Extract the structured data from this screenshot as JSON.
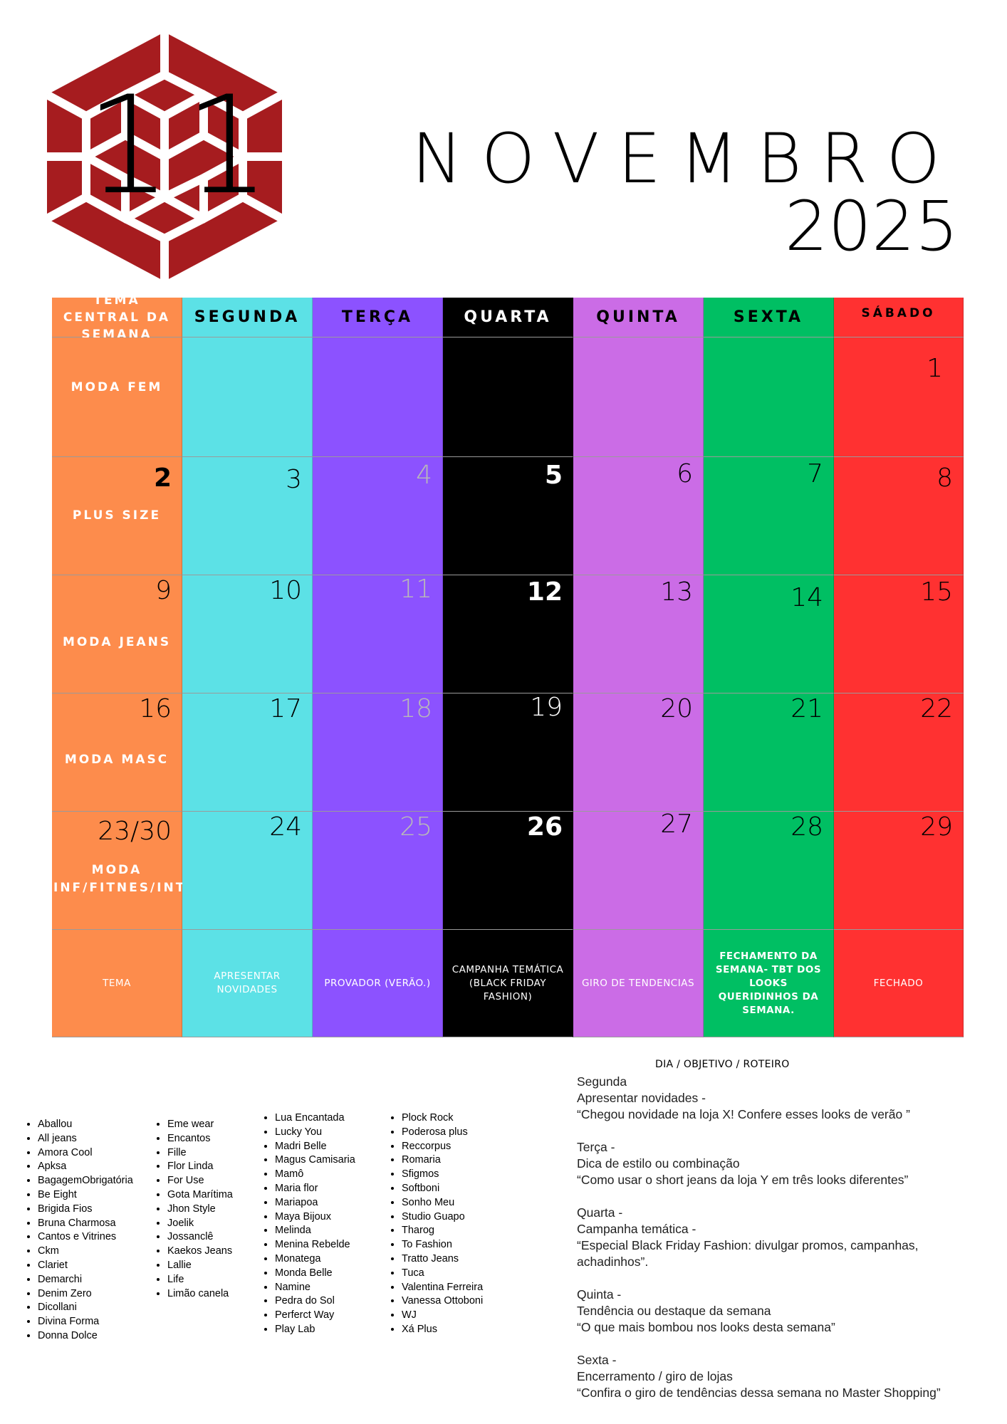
{
  "header": {
    "month_number": "11",
    "month": "NOVEMBRO",
    "year": "2025",
    "logo_color": "#a61c1f"
  },
  "calendar": {
    "theme_header": "TEMA CENTRAL DA SEMANA",
    "days": [
      "SEGUNDA",
      "TERÇA",
      "QUARTA",
      "QUINTA",
      "SEXTA",
      "SÁBADO"
    ],
    "column_colors": [
      "#fd8c4c",
      "#5ce1e6",
      "#8c52ff",
      "#000000",
      "#cb6ce6",
      "#00bf63",
      "#ff3131"
    ],
    "weeks": [
      {
        "theme_num": "",
        "theme": "MODA FEM",
        "days": [
          "",
          "",
          "",
          "",
          "",
          "1"
        ]
      },
      {
        "theme_num": "2",
        "theme": "PLUS SIZE",
        "days": [
          "3",
          "4",
          "5",
          "6",
          "7",
          "8"
        ]
      },
      {
        "theme_num": "9",
        "theme": "MODA JEANS",
        "days": [
          "10",
          "11",
          "12",
          "13",
          "14",
          "15"
        ]
      },
      {
        "theme_num": "16",
        "theme": "MODA MASC",
        "days": [
          "17",
          "18",
          "19",
          "20",
          "21",
          "22"
        ]
      },
      {
        "theme_num": "23/30",
        "theme": "MODA INF/FITNES/INTIMA",
        "days": [
          "24",
          "25",
          "26",
          "27",
          "28",
          "29"
        ]
      }
    ],
    "footer": [
      "TEMA",
      "APRESENTAR NOVIDADES",
      "PROVADOR (VERÃO.)",
      "CAMPANHA TEMÁTICA (BLACK FRIDAY FASHION)",
      "GIRO DE TENDENCIAS",
      "FECHAMENTO DA SEMANA- TBT DOS LOOKS QUERIDINHOS DA SEMANA.",
      "FECHADO"
    ]
  },
  "stores": {
    "col1": [
      "Aballou",
      "All jeans",
      "Amora Cool",
      "Apksa",
      "BagagemObrigatória",
      "Be Eight",
      "Brigida Fios",
      "Bruna Charmosa",
      "Cantos e Vitrines",
      "Ckm",
      "Clariet",
      "Demarchi",
      "Denim Zero",
      "Dicollani",
      "Divina Forma",
      "Donna Dolce"
    ],
    "col2": [
      "Eme wear",
      "Encantos",
      "Fille",
      "Flor Linda",
      "For Use",
      "Gota Marítima",
      "Jhon Style",
      "Joelik",
      "Jossanclê",
      "Kaekos Jeans",
      "Lallie",
      "Life",
      "Limão canela"
    ],
    "col3": [
      "Lua Encantada",
      "Lucky You",
      "Madri Belle",
      "Magus Camisaria",
      "Mamô",
      "Maria flor",
      "Mariapoa",
      "Maya Bijoux",
      "Melinda",
      "Menina Rebelde",
      "Monatega",
      "Monda Belle",
      "Namine",
      "Pedra do Sol",
      "Perferct Way",
      "Play Lab"
    ],
    "col4": [
      "Plock Rock",
      "Poderosa plus",
      "Reccorpus",
      "Romaria",
      "Sfigmos",
      "Softboni",
      "Sonho Meu",
      "Studio Guapo",
      "Tharog",
      "To Fashion",
      "Tratto Jeans",
      "Tuca",
      "Valentina Ferreira",
      "Vanessa Ottoboni",
      "WJ",
      "Xá Plus"
    ]
  },
  "roteiro": {
    "title": "DIA / OBJETIVO / ROTEIRO",
    "blocks": [
      {
        "day": "Segunda",
        "objective": "Apresentar novidades -",
        "text": "“Chegou novidade na loja X! Confere esses looks de verão ”"
      },
      {
        "day": "Terça -",
        "objective": "Dica de estilo ou combinação",
        "text": "“Como usar o short jeans da loja Y em três looks diferentes”"
      },
      {
        "day": "Quarta -",
        "objective": "Campanha temática -",
        "text": "“Especial Black Friday Fashion: divulgar promos, campanhas, achadinhos”."
      },
      {
        "day": "Quinta -",
        "objective": "Tendência ou destaque da semana",
        "text": "“O que mais bombou nos looks desta semana”"
      },
      {
        "day": "Sexta -",
        "objective": "Encerramento / giro de lojas",
        "text": "“Confira o giro de tendências dessa semana no Master Shopping”"
      }
    ]
  }
}
